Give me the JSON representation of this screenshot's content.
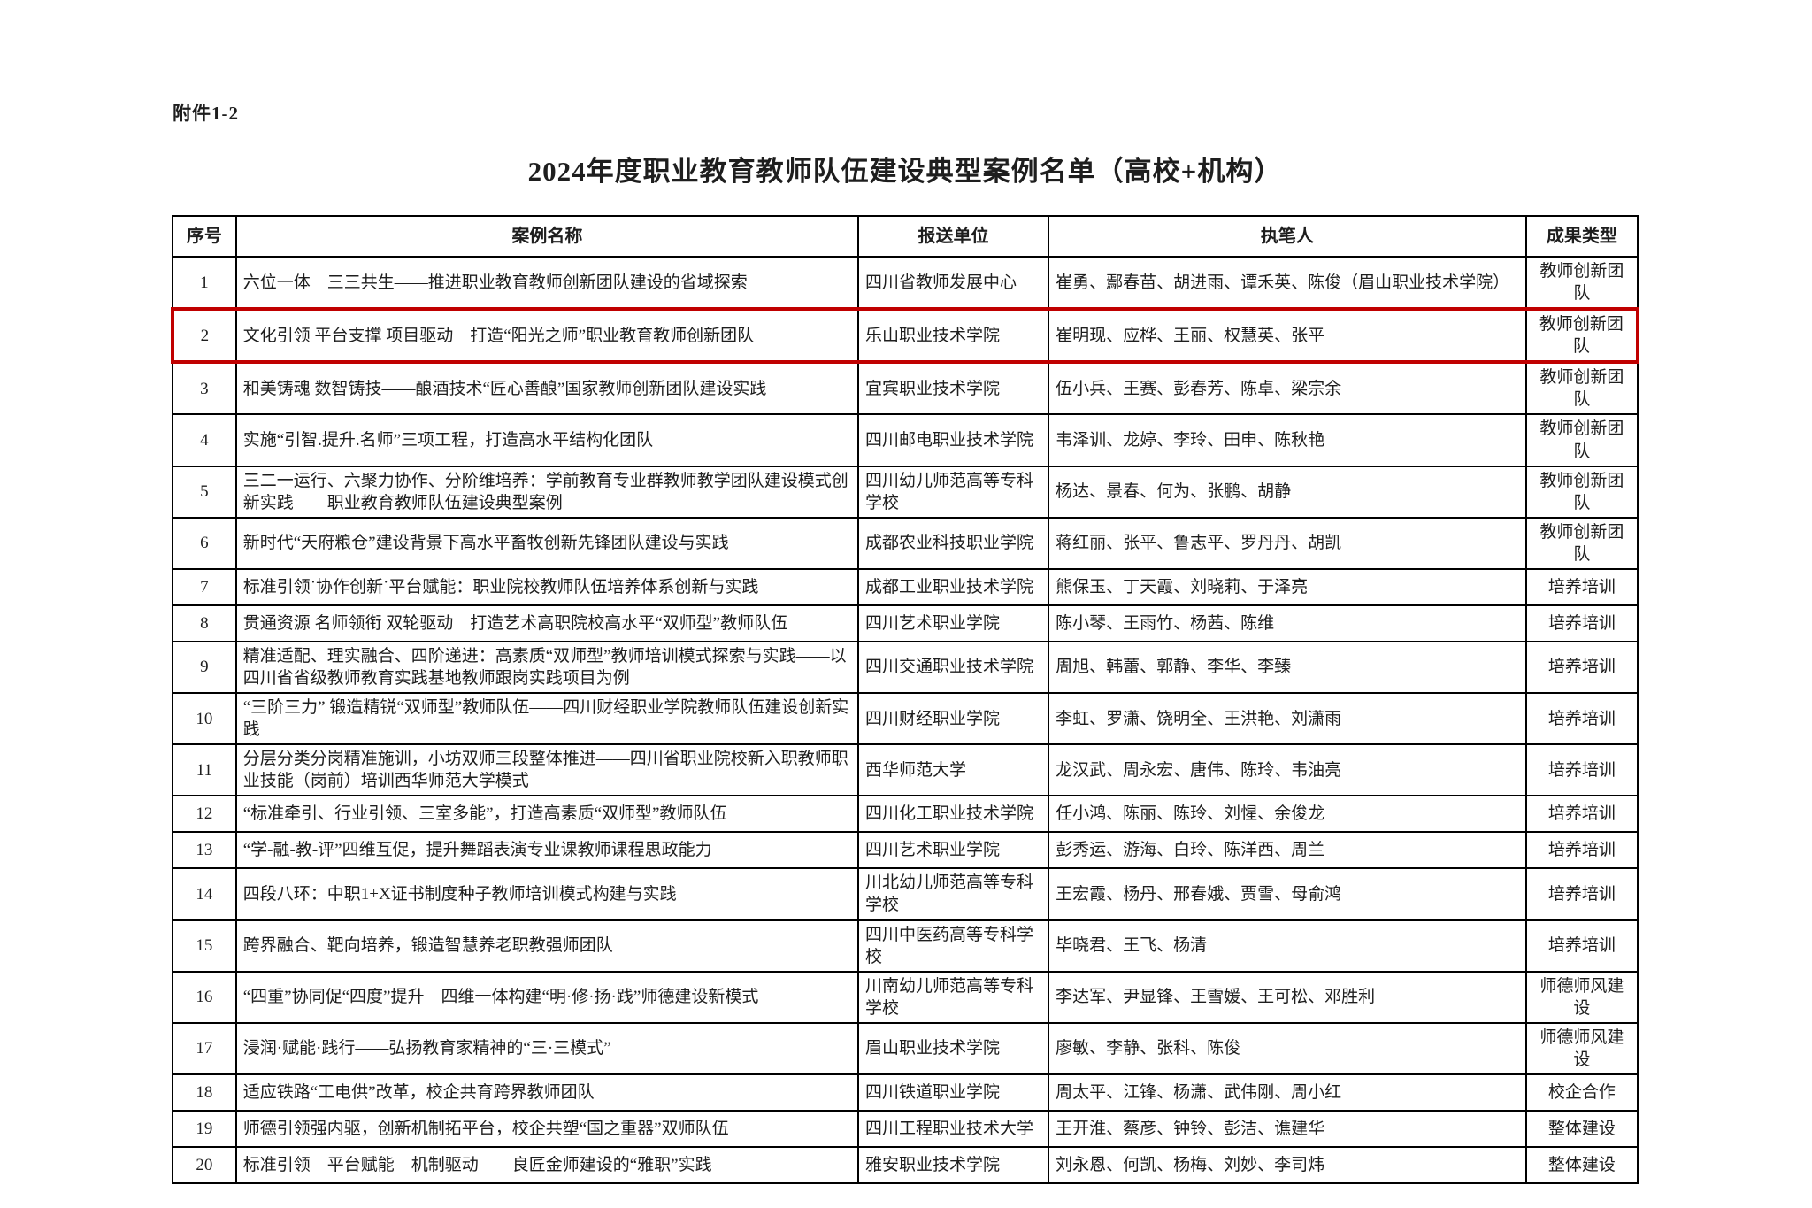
{
  "page": {
    "attachment_label": "附件1-2",
    "title": "2024年度职业教育教师队伍建设典型案例名单（高校+机构）"
  },
  "colors": {
    "text": "#1e1e1e",
    "table_border": "#000000",
    "highlight_border": "#c00000"
  },
  "table": {
    "headers": [
      "序号",
      "案例名称",
      "报送单位",
      "执笔人",
      "成果类型"
    ],
    "rows": [
      {
        "no": "1",
        "name": "六位一体　三三共生——推进职业教育教师创新团队建设的省域探索",
        "unit": "四川省教师发展中心",
        "authors": "崔勇、鄢春苗、胡进雨、谭禾英、陈俊（眉山职业技术学院）",
        "type": "教师创新团队",
        "highlighted": false
      },
      {
        "no": "2",
        "name": "文化引领 平台支撑 项目驱动　打造“阳光之师”职业教育教师创新团队",
        "unit": "乐山职业技术学院",
        "authors": "崔明现、应桦、王丽、权慧英、张平",
        "type": "教师创新团队",
        "highlighted": true
      },
      {
        "no": "3",
        "name": "和美铸魂 数智铸技——酿酒技术“匠心善酿”国家教师创新团队建设实践",
        "unit": "宜宾职业技术学院",
        "authors": "伍小兵、王赛、彭春芳、陈卓、梁宗余",
        "type": "教师创新团队",
        "highlighted": false
      },
      {
        "no": "4",
        "name": "实施“引智.提升.名师”三项工程，打造高水平结构化团队",
        "unit": "四川邮电职业技术学院",
        "authors": "韦泽训、龙婷、李玲、田申、陈秋艳",
        "type": "教师创新团队",
        "highlighted": false
      },
      {
        "no": "5",
        "name": "三二一运行、六聚力协作、分阶维培养：学前教育专业群教师教学团队建设模式创新实践——职业教育教师队伍建设典型案例",
        "unit": "四川幼儿师范高等专科学校",
        "authors": "杨达、景春、何为、张鹏、胡静",
        "type": "教师创新团队",
        "highlighted": false
      },
      {
        "no": "6",
        "name": "新时代“天府粮仓”建设背景下高水平畜牧创新先锋团队建设与实践",
        "unit": "成都农业科技职业学院",
        "authors": "蒋红丽、张平、鲁志平、罗丹丹、胡凯",
        "type": "教师创新团队",
        "highlighted": false
      },
      {
        "no": "7",
        "name": "标准引领˙协作创新˙平台赋能：职业院校教师队伍培养体系创新与实践",
        "unit": "成都工业职业技术学院",
        "authors": "熊保玉、丁天霞、刘晓莉、于泽亮",
        "type": "培养培训",
        "highlighted": false
      },
      {
        "no": "8",
        "name": "贯通资源 名师领衔 双轮驱动　打造艺术高职院校高水平“双师型”教师队伍",
        "unit": "四川艺术职业学院",
        "authors": "陈小琴、王雨竹、杨茜、陈维",
        "type": "培养培训",
        "highlighted": false
      },
      {
        "no": "9",
        "name": "精准适配、理实融合、四阶递进：高素质“双师型”教师培训模式探索与实践——以四川省省级教师教育实践基地教师跟岗实践项目为例",
        "unit": "四川交通职业技术学院",
        "authors": "周旭、韩蕾、郭静、李华、李臻",
        "type": "培养培训",
        "highlighted": false
      },
      {
        "no": "10",
        "name": "“三阶三力” 锻造精锐“双师型”教师队伍——四川财经职业学院教师队伍建设创新实践",
        "unit": "四川财经职业学院",
        "authors": "李虹、罗潇、饶明全、王洪艳、刘潇雨",
        "type": "培养培训",
        "highlighted": false
      },
      {
        "no": "11",
        "name": "分层分类分岗精准施训，小坊双师三段整体推进——四川省职业院校新入职教师职业技能（岗前）培训西华师范大学模式",
        "unit": "西华师范大学",
        "authors": "龙汉武、周永宏、唐伟、陈玲、韦油亮",
        "type": "培养培训",
        "highlighted": false
      },
      {
        "no": "12",
        "name": "“标准牵引、行业引领、三室多能”，打造高素质“双师型”教师队伍",
        "unit": "四川化工职业技术学院",
        "authors": "任小鸿、陈丽、陈玲、刘惺、余俊龙",
        "type": "培养培训",
        "highlighted": false
      },
      {
        "no": "13",
        "name": "“学-融-教-评”四维互促，提升舞蹈表演专业课教师课程思政能力",
        "unit": "四川艺术职业学院",
        "authors": "彭秀运、游海、白玲、陈洋西、周兰",
        "type": "培养培训",
        "highlighted": false
      },
      {
        "no": "14",
        "name": "四段八环：中职1+X证书制度种子教师培训模式构建与实践",
        "unit": "川北幼儿师范高等专科学校",
        "authors": "王宏霞、杨丹、邢春娥、贾雪、母俞鸿",
        "type": "培养培训",
        "highlighted": false
      },
      {
        "no": "15",
        "name": "跨界融合、靶向培养，锻造智慧养老职教强师团队",
        "unit": "四川中医药高等专科学校",
        "authors": "毕晓君、王飞、杨清",
        "type": "培养培训",
        "highlighted": false
      },
      {
        "no": "16",
        "name": "“四重”协同促“四度”提升　四维一体构建“明·修·扬·践”师德建设新模式",
        "unit": "川南幼儿师范高等专科学校",
        "authors": "李达军、尹显锋、王雪媛、王可松、邓胜利",
        "type": "师德师风建设",
        "highlighted": false
      },
      {
        "no": "17",
        "name": "浸润·赋能·践行——弘扬教育家精神的“三·三模式”",
        "unit": "眉山职业技术学院",
        "authors": "廖敏、李静、张科、陈俊",
        "type": "师德师风建设",
        "highlighted": false
      },
      {
        "no": "18",
        "name": "适应铁路“工电供”改革，校企共育跨界教师团队",
        "unit": "四川铁道职业学院",
        "authors": "周太平、江锋、杨潇、武伟刚、周小红",
        "type": "校企合作",
        "highlighted": false
      },
      {
        "no": "19",
        "name": "师德引领强内驱，创新机制拓平台，校企共塑“国之重器”双师队伍",
        "unit": "四川工程职业技术大学",
        "authors": "王开淮、蔡彦、钟铃、彭洁、谯建华",
        "type": "整体建设",
        "highlighted": false
      },
      {
        "no": "20",
        "name": "标准引领　平台赋能　机制驱动——良匠金师建设的“雅职”实践",
        "unit": "雅安职业技术学院",
        "authors": "刘永恩、何凯、杨梅、刘妙、李司炜",
        "type": "整体建设",
        "highlighted": false
      }
    ]
  }
}
